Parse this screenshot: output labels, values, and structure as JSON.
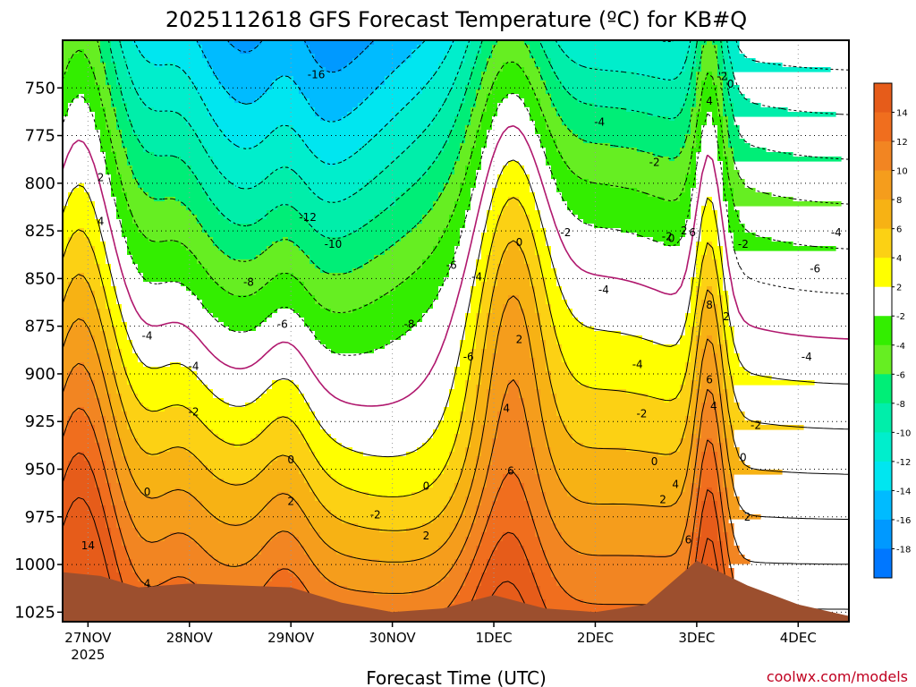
{
  "chart_data": {
    "type": "heatmap",
    "title": "2025112618 GFS Forecast Temperature (ºC) for KB#Q",
    "xlabel": "Forecast Time (UTC)",
    "ylabel": "",
    "credit": "coolwx.com/models",
    "x_ticks": [
      {
        "label": "27NOV",
        "sub": "2025"
      },
      {
        "label": "28NOV",
        "sub": ""
      },
      {
        "label": "29NOV",
        "sub": ""
      },
      {
        "label": "30NOV",
        "sub": ""
      },
      {
        "label": "1DEC",
        "sub": ""
      },
      {
        "label": "2DEC",
        "sub": ""
      },
      {
        "label": "3DEC",
        "sub": ""
      },
      {
        "label": "4DEC",
        "sub": ""
      }
    ],
    "x_range_hours": [
      -6,
      180
    ],
    "y_ticks": [
      750,
      775,
      800,
      825,
      850,
      875,
      900,
      925,
      950,
      975,
      1000,
      1025
    ],
    "ylim": [
      725,
      1030
    ],
    "grid": true,
    "colorbar": {
      "ticks": [
        "14",
        "12",
        "10",
        "8",
        "6",
        "4",
        "2",
        "-2",
        "-4",
        "-6",
        "-8",
        "-10",
        "-12",
        "-14",
        "-16",
        "-18"
      ],
      "bins": [
        {
          "lo": 14,
          "hi": 16,
          "color": "#e65c1a"
        },
        {
          "lo": 12,
          "hi": 14,
          "color": "#f06e1e"
        },
        {
          "lo": 10,
          "hi": 12,
          "color": "#f28522"
        },
        {
          "lo": 8,
          "hi": 10,
          "color": "#f59d1c"
        },
        {
          "lo": 6,
          "hi": 8,
          "color": "#f7b214"
        },
        {
          "lo": 4,
          "hi": 6,
          "color": "#fcd114"
        },
        {
          "lo": 2,
          "hi": 4,
          "color": "#ffff00"
        },
        {
          "lo": -2,
          "hi": 2,
          "color": "#ffffff"
        },
        {
          "lo": -4,
          "hi": -2,
          "color": "#33ee00"
        },
        {
          "lo": -6,
          "hi": -4,
          "color": "#66ee22"
        },
        {
          "lo": -8,
          "hi": -6,
          "color": "#00ee77"
        },
        {
          "lo": -10,
          "hi": -8,
          "color": "#00eeaa"
        },
        {
          "lo": -12,
          "hi": -10,
          "color": "#00eecc"
        },
        {
          "lo": -14,
          "hi": -12,
          "color": "#00e6f0"
        },
        {
          "lo": -16,
          "hi": -14,
          "color": "#00bbff"
        },
        {
          "lo": -18,
          "hi": -16,
          "color": "#0099ff"
        },
        {
          "lo": -20,
          "hi": -18,
          "color": "#0077ff"
        }
      ]
    },
    "ground_color": "#9c4f2e",
    "surface_pressure": [
      {
        "t": -6,
        "p": 1004
      },
      {
        "t": 3,
        "p": 1006
      },
      {
        "t": 12,
        "p": 1012
      },
      {
        "t": 24,
        "p": 1010
      },
      {
        "t": 36,
        "p": 1011
      },
      {
        "t": 48,
        "p": 1012
      },
      {
        "t": 60,
        "p": 1020
      },
      {
        "t": 72,
        "p": 1025
      },
      {
        "t": 84,
        "p": 1023
      },
      {
        "t": 96,
        "p": 1016
      },
      {
        "t": 108,
        "p": 1023
      },
      {
        "t": 120,
        "p": 1025
      },
      {
        "t": 132,
        "p": 1021
      },
      {
        "t": 144,
        "p": 998
      },
      {
        "t": 156,
        "p": 1011
      },
      {
        "t": 168,
        "p": 1021
      },
      {
        "t": 180,
        "p": 1027
      }
    ],
    "contour_labels": [
      {
        "text": "-16",
        "t": 54,
        "p": 743
      },
      {
        "text": "-12",
        "t": 52,
        "p": 818
      },
      {
        "text": "-10",
        "t": 58,
        "p": 832
      },
      {
        "text": "-8",
        "t": 38,
        "p": 852
      },
      {
        "text": "-8",
        "t": 76,
        "p": 874
      },
      {
        "text": "-6",
        "t": 46,
        "p": 874
      },
      {
        "text": "-6",
        "t": 86,
        "p": 843
      },
      {
        "text": "-6",
        "t": 90,
        "p": 891
      },
      {
        "text": "-4",
        "t": 14,
        "p": 880
      },
      {
        "text": "-4",
        "t": 25,
        "p": 896
      },
      {
        "text": "-4",
        "t": 92,
        "p": 849
      },
      {
        "text": "-4",
        "t": 121,
        "p": 768
      },
      {
        "text": "-4",
        "t": 122,
        "p": 856
      },
      {
        "text": "-4",
        "t": 130,
        "p": 895
      },
      {
        "text": "-4",
        "t": 170,
        "p": 891
      },
      {
        "text": "-4",
        "t": 177,
        "p": 826
      },
      {
        "text": "-2",
        "t": 25,
        "p": 920
      },
      {
        "text": "-2",
        "t": 68,
        "p": 974
      },
      {
        "text": "-2",
        "t": 113,
        "p": 826
      },
      {
        "text": "-2",
        "t": 134,
        "p": 789
      },
      {
        "text": "-2",
        "t": 137,
        "p": 828
      },
      {
        "text": "-2",
        "t": 131,
        "p": 921
      },
      {
        "text": "-2",
        "t": 155,
        "p": 832
      },
      {
        "text": "-2",
        "t": 158,
        "p": 927
      },
      {
        "text": "-6",
        "t": 172,
        "p": 845
      },
      {
        "text": "-2",
        "t": 150,
        "p": 744
      },
      {
        "text": "0",
        "t": 14,
        "p": 962
      },
      {
        "text": "0",
        "t": 48,
        "p": 945
      },
      {
        "text": "0",
        "t": 80,
        "p": 959
      },
      {
        "text": "0",
        "t": 102,
        "p": 831
      },
      {
        "text": "0",
        "t": 138,
        "p": 829
      },
      {
        "text": "0",
        "t": 134,
        "p": 946
      },
      {
        "text": "0",
        "t": 152,
        "p": 748
      },
      {
        "text": "0",
        "t": 155,
        "p": 944
      },
      {
        "text": "2",
        "t": 3,
        "p": 797
      },
      {
        "text": "2",
        "t": 48,
        "p": 967
      },
      {
        "text": "2",
        "t": 80,
        "p": 985
      },
      {
        "text": "2",
        "t": 102,
        "p": 882
      },
      {
        "text": "2",
        "t": 141,
        "p": 825
      },
      {
        "text": "2",
        "t": 136,
        "p": 966
      },
      {
        "text": "2",
        "t": 151,
        "p": 870
      },
      {
        "text": "2",
        "t": 156,
        "p": 975
      },
      {
        "text": "4",
        "t": 3,
        "p": 820
      },
      {
        "text": "4",
        "t": 14,
        "p": 1010
      },
      {
        "text": "4",
        "t": 99,
        "p": 918
      },
      {
        "text": "4",
        "t": 139,
        "p": 958
      },
      {
        "text": "4",
        "t": 147,
        "p": 757
      },
      {
        "text": "4",
        "t": 148,
        "p": 917
      },
      {
        "text": "6",
        "t": 100,
        "p": 951
      },
      {
        "text": "6",
        "t": 143,
        "p": 826
      },
      {
        "text": "6",
        "t": 147,
        "p": 903
      },
      {
        "text": "6",
        "t": 142,
        "p": 987
      },
      {
        "text": "8",
        "t": 147,
        "p": 864
      },
      {
        "text": "14",
        "t": 0,
        "p": 990
      }
    ]
  }
}
